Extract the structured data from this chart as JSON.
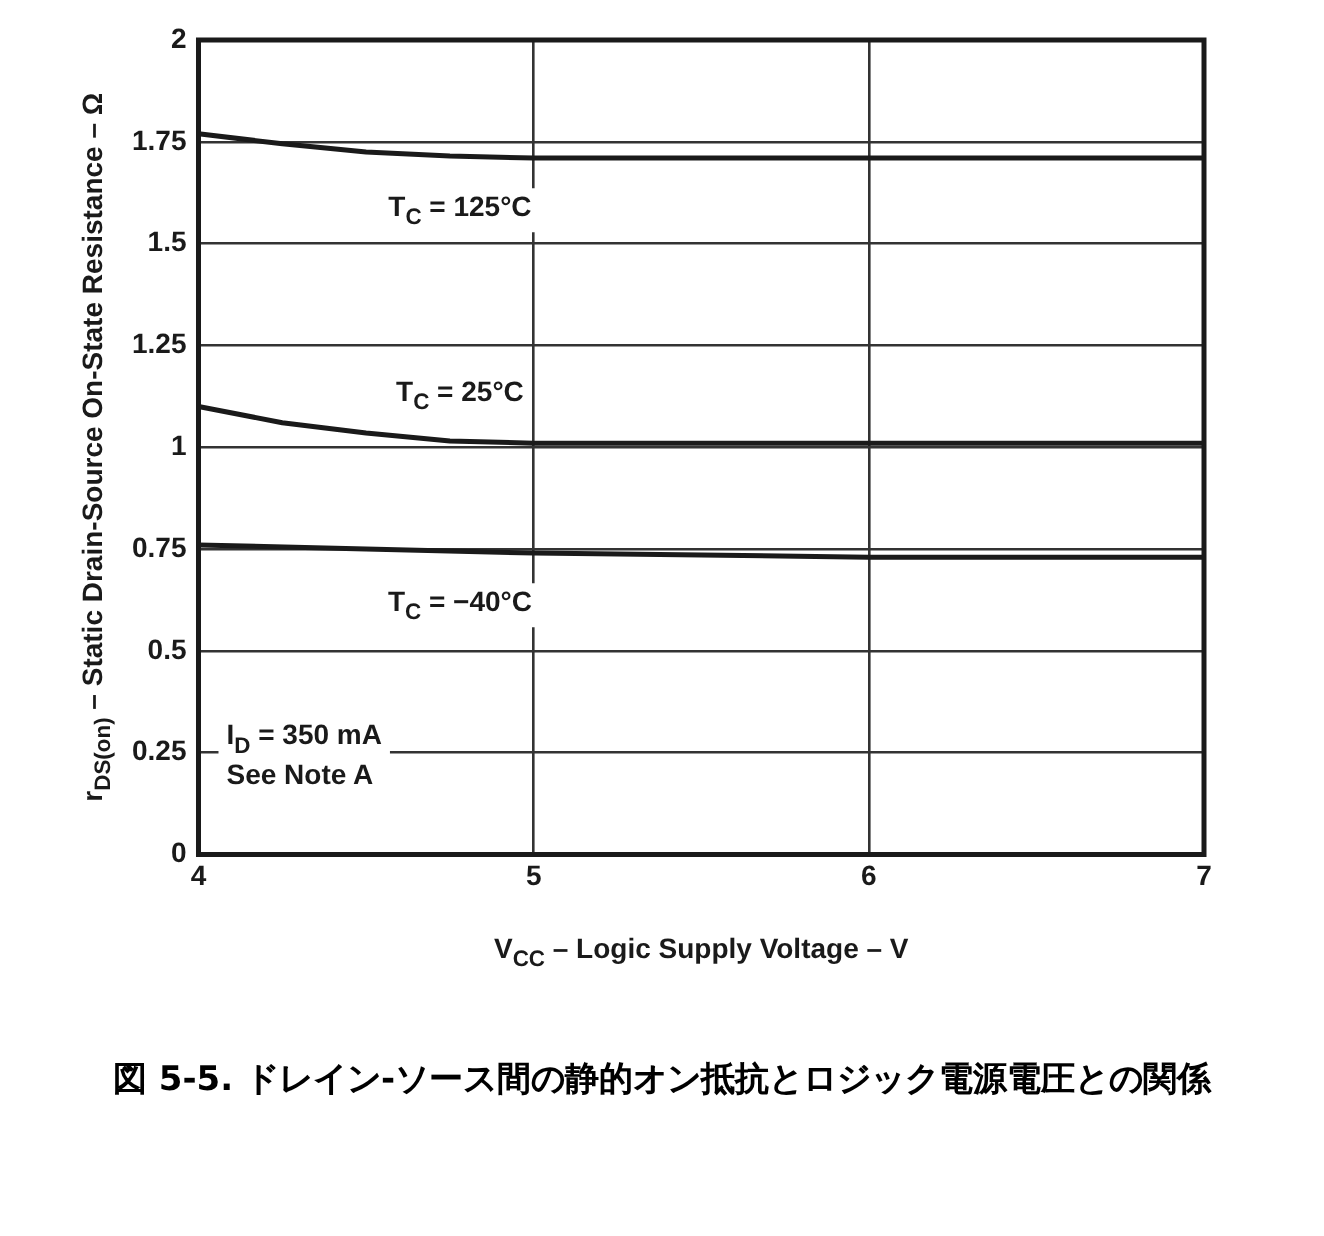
{
  "chart_data": {
    "type": "line",
    "title": "図 5-5. ドレイン-ソース間の静的オン抵抗とロジック電源電圧との関係",
    "xlabel": "V$_{CC}$ – Logic Supply Voltage – V",
    "ylabel": "r$_{DS(on)}$ – Static Drain-Source On-State Resistance – Ω",
    "xlim": [
      4,
      7
    ],
    "xticks": [
      4,
      5,
      6,
      7
    ],
    "ylim": [
      0,
      2
    ],
    "yticks": [
      0,
      0.25,
      0.5,
      0.75,
      1,
      1.25,
      1.5,
      1.75,
      2
    ],
    "grid": true,
    "legend": false,
    "marker": "none",
    "line_style": "solid",
    "series": [
      {
        "name": "T$_{C}$ = 125°C",
        "color": "#1a1a1a",
        "x": [
          4,
          4.25,
          4.5,
          4.75,
          5,
          6,
          7
        ],
        "values": [
          1.77,
          1.745,
          1.725,
          1.715,
          1.71,
          1.71,
          1.71
        ]
      },
      {
        "name": "T$_{C}$ = 25°C",
        "color": "#1a1a1a",
        "x": [
          4,
          4.25,
          4.5,
          4.75,
          5,
          6,
          7
        ],
        "values": [
          1.1,
          1.06,
          1.035,
          1.015,
          1.01,
          1.01,
          1.01
        ]
      },
      {
        "name": "T$_{C}$ = −40°C",
        "color": "#1a1a1a",
        "x": [
          4,
          4.5,
          5,
          5.5,
          6,
          7
        ],
        "values": [
          0.76,
          0.75,
          0.74,
          0.735,
          0.73,
          0.73
        ]
      }
    ],
    "annotations": [
      "I$_{D}$ = 350 mA",
      "See Note A"
    ]
  }
}
